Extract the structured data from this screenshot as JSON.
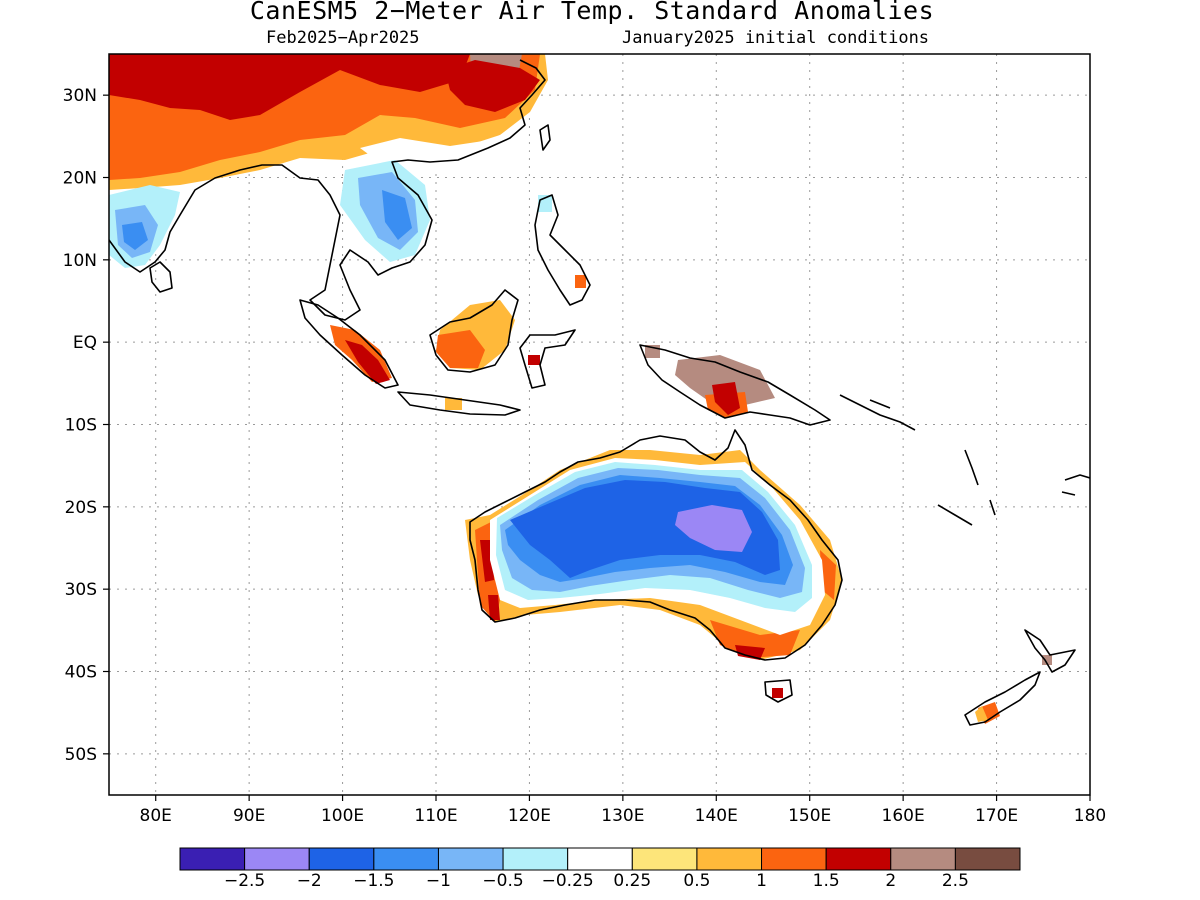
{
  "title": "CanESM5 2−Meter Air Temp. Standard Anomalies",
  "subtitle_period": "Feb2025−Apr2025",
  "subtitle_init": "January2025 initial conditions",
  "map": {
    "lon_range": [
      75,
      180
    ],
    "lat_range": [
      -55,
      35
    ],
    "lat_ticks": [
      {
        "lat": 30,
        "label": "30N"
      },
      {
        "lat": 20,
        "label": "20N"
      },
      {
        "lat": 10,
        "label": "10N"
      },
      {
        "lat": 0,
        "label": "EQ"
      },
      {
        "lat": -10,
        "label": "10S"
      },
      {
        "lat": -20,
        "label": "20S"
      },
      {
        "lat": -30,
        "label": "30S"
      },
      {
        "lat": -40,
        "label": "40S"
      },
      {
        "lat": -50,
        "label": "50S"
      }
    ],
    "lon_ticks": [
      {
        "lon": 80,
        "label": "80E"
      },
      {
        "lon": 90,
        "label": "90E"
      },
      {
        "lon": 100,
        "label": "100E"
      },
      {
        "lon": 110,
        "label": "110E"
      },
      {
        "lon": 120,
        "label": "120E"
      },
      {
        "lon": 130,
        "label": "130E"
      },
      {
        "lon": 140,
        "label": "140E"
      },
      {
        "lon": 150,
        "label": "150E"
      },
      {
        "lon": 160,
        "label": "160E"
      },
      {
        "lon": 170,
        "label": "170E"
      },
      {
        "lon": 180,
        "label": "180"
      }
    ],
    "grid": true
  },
  "colorbar": {
    "colors": [
      "#3a1fb3",
      "#9b87f5",
      "#1e63e6",
      "#3a8ef2",
      "#78b6f7",
      "#b3f0fa",
      "#ffffff",
      "#fde57a",
      "#ffb93a",
      "#fb6410",
      "#c20000",
      "#b58b80",
      "#784c40"
    ],
    "labels": [
      "−2.5",
      "−2",
      "−1.5",
      "−1",
      "−0.5",
      "−0.25",
      "0.25",
      "0.5",
      "1",
      "1.5",
      "2",
      "2.5"
    ]
  }
}
